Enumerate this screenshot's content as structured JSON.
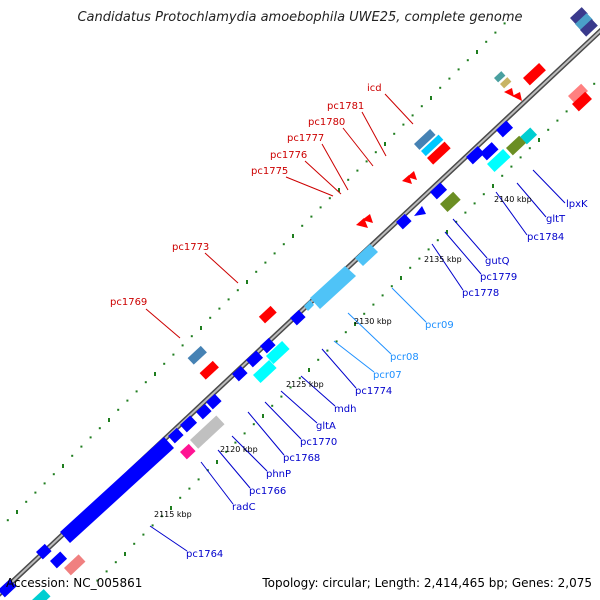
{
  "title": "Candidatus Protochlamydia amoebophila UWE25, complete genome",
  "footer": {
    "accession": "Accession: NC_005861",
    "summary": "Topology: circular; Length: 2,414,465 bp; Genes: 2,075"
  },
  "colors": {
    "backbone_dark": "#4a4a4a",
    "backbone_light": "#bdbdbd",
    "tick": "#1e7d1e",
    "red_label": "#cc0000",
    "blue_label": "#0000cc",
    "cyan_label": "#1e90ff"
  },
  "scale_labels": [
    {
      "text": "2115 kbp"
    },
    {
      "text": "2120 kbp"
    },
    {
      "text": "2125 kbp"
    },
    {
      "text": "2130 kbp"
    },
    {
      "text": "2135 kbp"
    },
    {
      "text": "2140 kbp"
    }
  ],
  "gene_labels_upper": [
    "icd",
    "pc1781",
    "pc1780",
    "pc1777",
    "pc1776",
    "pc1775",
    "pc1773",
    "pc1769"
  ],
  "gene_labels_lower": [
    "lpxK",
    "gltT",
    "pc1784",
    "gutQ",
    "pc1779",
    "pc1778",
    "pcr09",
    "pcr08",
    "pcr07",
    "pc1774",
    "mdh",
    "gltA",
    "pc1770",
    "pc1768",
    "phnP",
    "pc1766",
    "radC",
    "pc1764"
  ]
}
